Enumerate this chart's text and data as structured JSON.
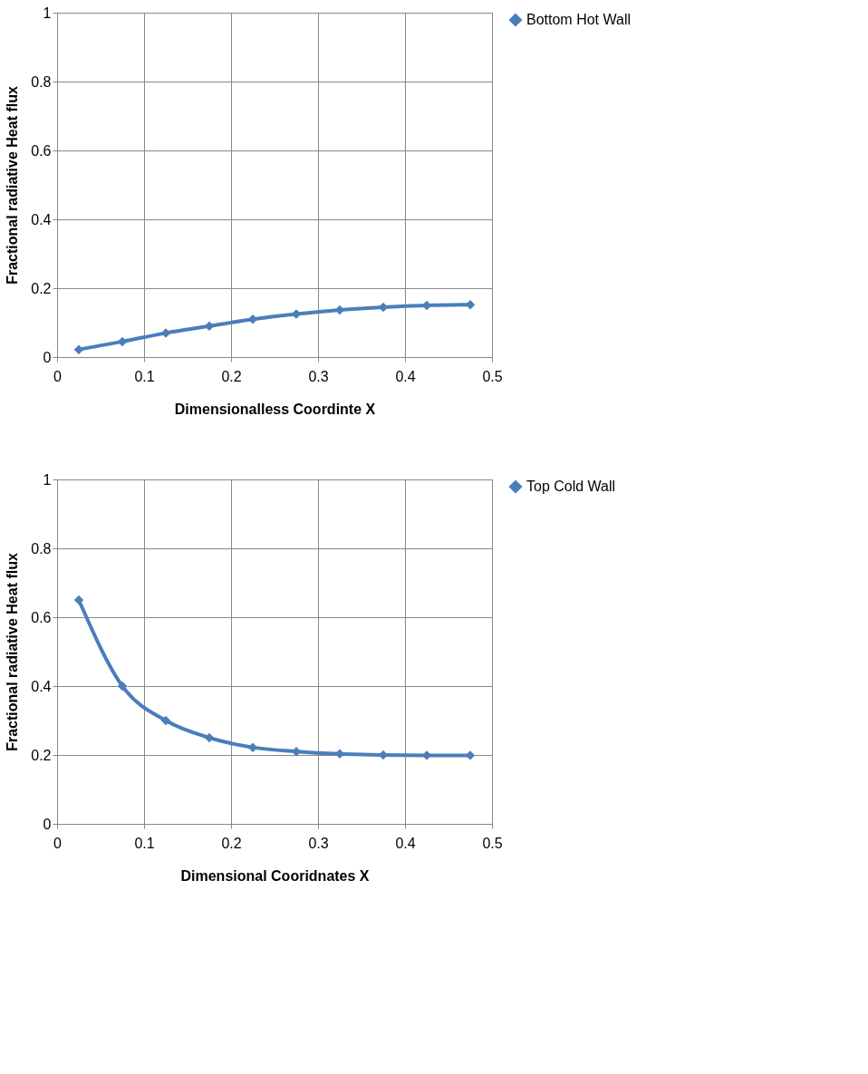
{
  "chart_data": [
    {
      "type": "line",
      "xlabel": "Dimensionalless Coordinte X",
      "ylabel": "Fractional radiative Heat flux",
      "x": [
        0.025,
        0.075,
        0.125,
        0.175,
        0.225,
        0.275,
        0.325,
        0.375,
        0.425,
        0.475
      ],
      "series": [
        {
          "name": "Bottom Hot Wall",
          "color": "#4a7ebb",
          "values": [
            0.022,
            0.045,
            0.07,
            0.09,
            0.11,
            0.125,
            0.137,
            0.145,
            0.15,
            0.152
          ]
        }
      ],
      "xlim": [
        0,
        0.5
      ],
      "xticks": [
        0,
        0.1,
        0.2,
        0.3,
        0.4,
        0.5
      ],
      "ylim": [
        0,
        1
      ],
      "yticks": [
        0,
        0.2,
        0.4,
        0.6,
        0.8,
        1
      ],
      "grid": true,
      "legend": "right",
      "marker": "diamond",
      "line_style": "solid"
    },
    {
      "type": "line",
      "xlabel": "Dimensional Cooridnates X",
      "ylabel": "Fractional radiative Heat flux",
      "x": [
        0.025,
        0.075,
        0.125,
        0.175,
        0.225,
        0.275,
        0.325,
        0.375,
        0.425,
        0.475
      ],
      "series": [
        {
          "name": "Top Cold Wall",
          "color": "#4a7ebb",
          "values": [
            0.65,
            0.4,
            0.3,
            0.25,
            0.222,
            0.21,
            0.203,
            0.2,
            0.199,
            0.199
          ]
        }
      ],
      "xlim": [
        0,
        0.5
      ],
      "xticks": [
        0,
        0.1,
        0.2,
        0.3,
        0.4,
        0.5
      ],
      "ylim": [
        0,
        1
      ],
      "yticks": [
        0,
        0.2,
        0.4,
        0.6,
        0.8,
        1
      ],
      "grid": true,
      "legend": "right",
      "marker": "diamond",
      "line_style": "solid"
    }
  ]
}
